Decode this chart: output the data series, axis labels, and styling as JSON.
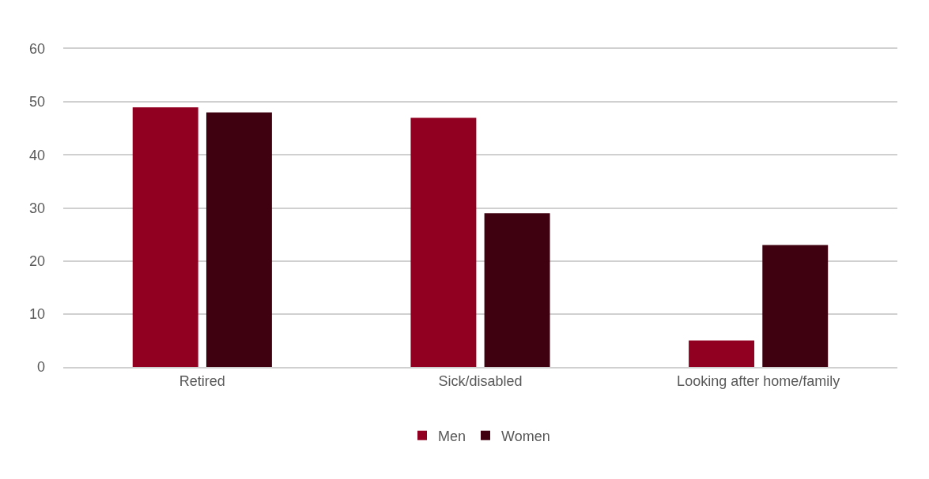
{
  "chart_data": {
    "type": "bar",
    "categories": [
      "Retired",
      "Sick/disabled",
      "Looking after home/family"
    ],
    "series": [
      {
        "name": "Men",
        "color": "#910020",
        "values": [
          49,
          47,
          5
        ]
      },
      {
        "name": "Women",
        "color": "#3f000f",
        "values": [
          48,
          29,
          23
        ]
      }
    ],
    "ylim": [
      0,
      60
    ],
    "yticks": [
      0,
      10,
      20,
      30,
      40,
      50,
      60
    ],
    "grid": "y",
    "legend": "bottom"
  }
}
